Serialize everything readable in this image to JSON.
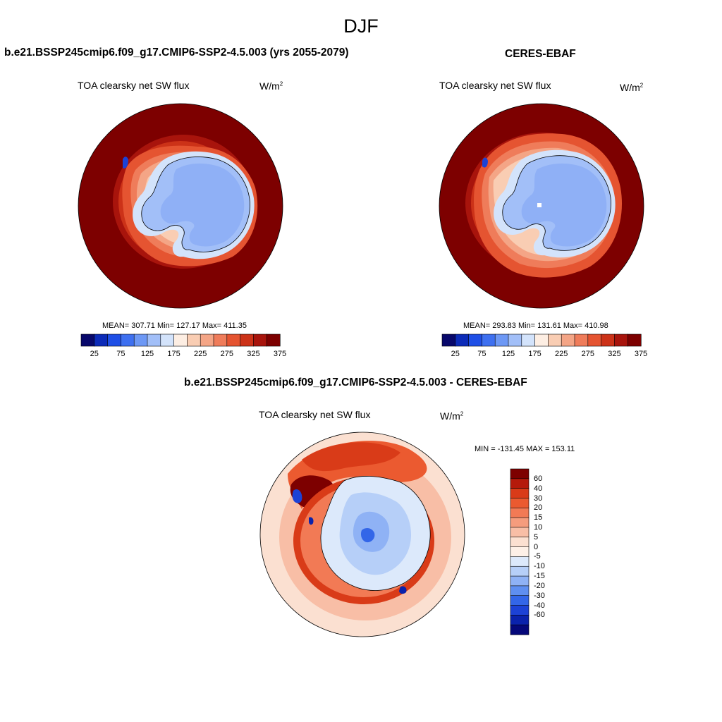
{
  "season": "DJF",
  "panels": [
    {
      "id": "model",
      "title": "b.e21.BSSP245cmip6.f09_g17.CMIP6-SSP2-4.5.003 (yrs 2055-2079)",
      "variable": "TOA clearsky net SW flux",
      "units_base": "W/m",
      "units_exp": "2",
      "stats": "MEAN= 307.71  Min= 127.17  Max= 411.35"
    },
    {
      "id": "obs",
      "title": "CERES-EBAF",
      "variable": "TOA clearsky net SW flux",
      "units_base": "W/m",
      "units_exp": "2",
      "stats": "MEAN= 293.83  Min= 131.61  Max= 410.98"
    }
  ],
  "abs_colorbar": {
    "colors": [
      "#08086b",
      "#0c2bb8",
      "#1f4fe6",
      "#3e70f0",
      "#6d98f5",
      "#a2bff8",
      "#d3e3fb",
      "#fdeee3",
      "#f9cdb3",
      "#f4a586",
      "#ef7c5a",
      "#e55431",
      "#cc3218",
      "#a8140c",
      "#7d0000"
    ],
    "labels": [
      "25",
      "75",
      "125",
      "175",
      "225",
      "275",
      "325",
      "375"
    ]
  },
  "diff_panel": {
    "title": "b.e21.BSSP245cmip6.f09_g17.CMIP6-SSP2-4.5.003 - CERES-EBAF",
    "variable": "TOA clearsky net SW flux",
    "units_base": "W/m",
    "units_exp": "2",
    "minmax": "MIN = -131.45 MAX = 153.11"
  },
  "diff_colorbar": {
    "colors": [
      "#7d0000",
      "#b51a0b",
      "#d93b18",
      "#eb5a30",
      "#f27a55",
      "#f59c7d",
      "#f8bea6",
      "#fbe0d1",
      "#fdf0e7",
      "#dce9fb",
      "#b6cff8",
      "#8fb2f5",
      "#5f8ff0",
      "#3366e8",
      "#1c42d6",
      "#0a22ac",
      "#05087a"
    ],
    "labels": [
      "60",
      "40",
      "30",
      "20",
      "15",
      "10",
      "5",
      "0",
      "-5",
      "-10",
      "-15",
      "-20",
      "-30",
      "-40",
      "-60"
    ]
  }
}
